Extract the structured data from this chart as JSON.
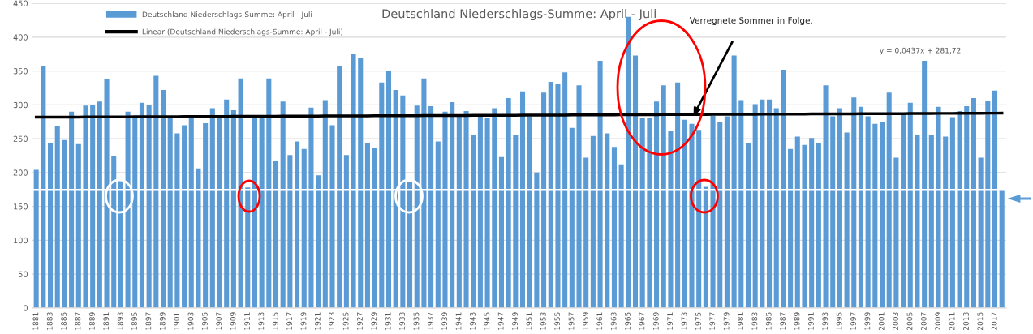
{
  "chart_data": {
    "type": "bar",
    "title": "Deutschland Niederschlags-Summe: April - Juli",
    "categories": [
      "1881",
      null,
      "1883",
      null,
      "1885",
      null,
      "1887",
      null,
      "1889",
      null,
      "1891",
      null,
      "1893",
      null,
      "1895",
      null,
      "1897",
      null,
      "1899",
      null,
      "1901",
      null,
      "1903",
      null,
      "1905",
      null,
      "1907",
      null,
      "1909",
      null,
      "1911",
      null,
      "1913",
      null,
      "1915",
      null,
      "1917",
      null,
      "1919",
      null,
      "1921",
      null,
      "1923",
      null,
      "1925",
      null,
      "1927",
      null,
      "1929",
      null,
      "1931",
      null,
      "1933",
      null,
      "1935",
      null,
      "1937",
      null,
      "1939",
      null,
      "1941",
      null,
      "1943",
      null,
      "1945",
      null,
      "1947",
      null,
      "1949",
      null,
      "1951",
      null,
      "1953",
      null,
      "1955",
      null,
      "1957",
      null,
      "1959",
      null,
      "1961",
      null,
      "1963",
      null,
      "1965",
      null,
      "1967",
      null,
      "1969",
      null,
      "1971",
      null,
      "1973",
      null,
      "1975",
      null,
      "1977",
      null,
      "1979",
      null,
      "1981",
      null,
      "1983",
      null,
      "1985",
      null,
      "1987",
      null,
      "1989",
      null,
      "1991",
      null,
      "1993",
      null,
      "1995",
      null,
      "1997",
      null,
      "1999",
      null,
      "2001",
      null,
      "2003",
      null,
      "2005",
      null,
      "2007",
      null,
      "2009",
      null,
      "2011",
      null,
      "2013",
      null,
      "2015",
      null,
      "2017",
      null
    ],
    "series": [
      {
        "name": "Deutschland Niederschlags-Summe: April - Juli",
        "color": "#5b9bd5",
        "values": [
          204,
          358,
          244,
          269,
          248,
          290,
          242,
          299,
          300,
          305,
          338,
          225,
          188,
          290,
          282,
          303,
          300,
          343,
          322,
          281,
          258,
          270,
          281,
          206,
          273,
          295,
          281,
          308,
          292,
          339,
          178,
          281,
          281,
          339,
          217,
          305,
          226,
          246,
          235,
          296,
          196,
          307,
          270,
          358,
          226,
          376,
          370,
          243,
          237,
          333,
          350,
          322,
          314,
          186,
          299,
          339,
          298,
          246,
          290,
          304,
          283,
          291,
          256,
          283,
          281,
          295,
          223,
          310,
          256,
          320,
          283,
          200,
          318,
          334,
          331,
          348,
          266,
          329,
          222,
          254,
          365,
          258,
          238,
          212,
          430,
          373,
          280,
          280,
          305,
          329,
          261,
          333,
          278,
          272,
          263,
          179,
          284,
          274,
          283,
          373,
          307,
          243,
          301,
          308,
          308,
          295,
          352,
          235,
          253,
          241,
          251,
          243,
          329,
          283,
          295,
          259,
          311,
          297,
          283,
          272,
          275,
          318,
          222,
          285,
          303,
          256,
          365,
          256,
          297,
          253,
          282,
          291,
          298,
          310,
          222,
          306,
          321,
          176
        ]
      },
      {
        "name": "Linear (Deutschland Niederschlags-Summe: April - Juli)",
        "type": "line",
        "color": "#000000",
        "values": [
          281.8,
          281.8,
          281.9,
          281.9,
          281.9,
          282.0,
          282.0,
          282.1,
          282.1,
          282.2,
          282.2,
          282.2,
          282.3,
          282.3,
          282.4,
          282.4,
          282.5,
          282.5,
          282.6,
          282.6,
          282.6,
          282.7,
          282.7,
          282.8,
          282.8,
          282.9,
          282.9,
          282.9,
          283.0,
          283.0,
          283.1,
          283.1,
          283.2,
          283.2,
          283.2,
          283.3,
          283.3,
          283.4,
          283.4,
          283.5,
          283.5,
          283.6,
          283.6,
          283.6,
          283.7,
          283.7,
          283.8,
          283.8,
          283.9,
          283.9,
          283.9,
          284.0,
          284.0,
          284.1,
          284.1,
          284.2,
          284.2,
          284.3,
          284.3,
          284.3,
          284.4,
          284.4,
          284.5,
          284.5,
          284.6,
          284.6,
          284.6,
          284.7,
          284.7,
          284.8,
          284.8,
          284.9,
          284.9,
          285.0,
          285.0,
          285.0,
          285.1,
          285.1,
          285.2,
          285.2,
          285.3,
          285.3,
          285.3,
          285.4,
          285.4,
          285.5,
          285.5,
          285.6,
          285.6,
          285.7,
          285.7,
          285.7,
          285.8,
          285.8,
          285.9,
          285.9,
          286.0,
          286.0,
          286.0,
          286.1,
          286.1,
          286.2,
          286.2,
          286.3,
          286.3,
          286.4,
          286.4,
          286.4,
          286.5,
          286.5,
          286.6,
          286.6,
          286.7,
          286.7,
          286.7,
          286.8,
          286.8,
          286.9,
          286.9,
          287.0,
          287.0,
          287.1,
          287.1,
          287.1,
          287.2,
          287.2,
          287.3,
          287.3,
          287.4,
          287.4,
          287.4,
          287.5,
          287.5,
          287.6,
          287.6,
          287.7,
          287.7,
          287.8
        ]
      }
    ],
    "ylim": [
      0,
      450
    ],
    "yticks": [
      0,
      50,
      100,
      150,
      200,
      250,
      300,
      350,
      400,
      450
    ],
    "grid": "y",
    "legend": "top left",
    "ref_lines": [
      {
        "axis": "y",
        "value": 175,
        "color": "#ffffff"
      }
    ],
    "annotations": [
      "Verregnete Sommer in Folge.",
      "y = 0,0437x + 281,72"
    ]
  }
}
